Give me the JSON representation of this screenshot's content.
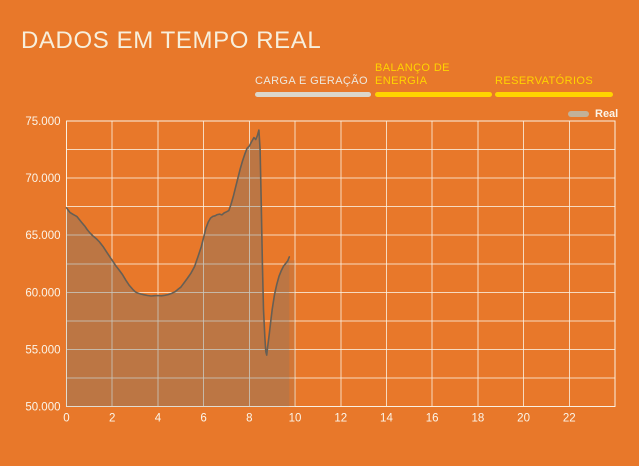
{
  "title": "DADOS EM TEMPO REAL",
  "tabs": [
    {
      "label": "CARGA E GERAÇÃO",
      "active": true
    },
    {
      "label": "BALANÇO DE ENERGIA",
      "active": false
    },
    {
      "label": "RESERVATÓRIOS",
      "active": false
    }
  ],
  "legend": {
    "label": "Real"
  },
  "colors": {
    "background": "#E8782A",
    "title_text": "#F7EFDC",
    "active_tab": "#DCD6CA",
    "accent_yellow": "#FFD400",
    "gridline": "rgba(250,242,228,0.8)",
    "frame": "rgba(250,242,228,0.9)",
    "axis_text": "#FBF5E9",
    "area_fill": "rgba(100,115,120,0.33)",
    "live_edge_fill": "rgba(100,115,120,0.16)",
    "line_stroke": "#675F54",
    "legend_swatch": "#C2B199"
  },
  "chart_data": {
    "type": "area",
    "title": "",
    "xlabel": "",
    "ylabel": "",
    "x_range": [
      0,
      24
    ],
    "y_range": [
      50000,
      75000
    ],
    "x_gridline_step_hours": 2,
    "y_gridline_step": 2500,
    "grid": true,
    "legend_position": "top-right",
    "x_tick_values": [
      0,
      2,
      4,
      6,
      8,
      10,
      12,
      14,
      16,
      18,
      20,
      22
    ],
    "x_tick_labels": [
      "0",
      "2",
      "4",
      "6",
      "8",
      "10",
      "12",
      "14",
      "16",
      "18",
      "20",
      "22"
    ],
    "y_tick_values": [
      50000,
      55000,
      60000,
      65000,
      70000,
      75000
    ],
    "y_tick_labels": [
      "50.000",
      "55.000",
      "60.000",
      "65.000",
      "70.000",
      "75.000"
    ],
    "series": [
      {
        "name": "Real",
        "points": [
          [
            0.0,
            67400
          ],
          [
            0.15,
            67000
          ],
          [
            0.3,
            66800
          ],
          [
            0.45,
            66650
          ],
          [
            0.55,
            66400
          ],
          [
            0.65,
            66150
          ],
          [
            0.8,
            65800
          ],
          [
            0.9,
            65500
          ],
          [
            1.0,
            65250
          ],
          [
            1.15,
            64950
          ],
          [
            1.3,
            64700
          ],
          [
            1.45,
            64400
          ],
          [
            1.6,
            64000
          ],
          [
            1.75,
            63550
          ],
          [
            1.9,
            63100
          ],
          [
            2.0,
            62800
          ],
          [
            2.15,
            62350
          ],
          [
            2.3,
            61950
          ],
          [
            2.45,
            61550
          ],
          [
            2.6,
            61050
          ],
          [
            2.75,
            60600
          ],
          [
            2.9,
            60250
          ],
          [
            3.0,
            60050
          ],
          [
            3.1,
            59950
          ],
          [
            3.25,
            59850
          ],
          [
            3.4,
            59780
          ],
          [
            3.55,
            59720
          ],
          [
            3.7,
            59680
          ],
          [
            3.85,
            59700
          ],
          [
            4.0,
            59720
          ],
          [
            4.15,
            59690
          ],
          [
            4.3,
            59740
          ],
          [
            4.45,
            59800
          ],
          [
            4.6,
            59900
          ],
          [
            4.75,
            60050
          ],
          [
            4.9,
            60300
          ],
          [
            5.0,
            60450
          ],
          [
            5.15,
            60850
          ],
          [
            5.3,
            61250
          ],
          [
            5.45,
            61700
          ],
          [
            5.6,
            62250
          ],
          [
            5.75,
            63100
          ],
          [
            5.9,
            64000
          ],
          [
            6.0,
            64800
          ],
          [
            6.1,
            65600
          ],
          [
            6.2,
            66150
          ],
          [
            6.3,
            66500
          ],
          [
            6.4,
            66650
          ],
          [
            6.5,
            66700
          ],
          [
            6.6,
            66800
          ],
          [
            6.7,
            66850
          ],
          [
            6.8,
            66780
          ],
          [
            6.9,
            66950
          ],
          [
            7.0,
            67050
          ],
          [
            7.1,
            67150
          ],
          [
            7.2,
            67700
          ],
          [
            7.3,
            68400
          ],
          [
            7.4,
            69200
          ],
          [
            7.5,
            70000
          ],
          [
            7.6,
            70800
          ],
          [
            7.7,
            71500
          ],
          [
            7.8,
            72100
          ],
          [
            7.9,
            72600
          ],
          [
            8.0,
            72800
          ],
          [
            8.1,
            73200
          ],
          [
            8.2,
            73550
          ],
          [
            8.28,
            73380
          ],
          [
            8.35,
            73700
          ],
          [
            8.42,
            74200
          ],
          [
            8.47,
            72500
          ],
          [
            8.52,
            68000
          ],
          [
            8.57,
            62500
          ],
          [
            8.62,
            58500
          ],
          [
            8.68,
            56000
          ],
          [
            8.72,
            54800
          ],
          [
            8.76,
            54500
          ],
          [
            8.8,
            55200
          ],
          [
            8.87,
            56300
          ],
          [
            8.94,
            57500
          ],
          [
            9.0,
            58500
          ],
          [
            9.1,
            59800
          ],
          [
            9.2,
            60700
          ],
          [
            9.3,
            61400
          ],
          [
            9.4,
            61900
          ],
          [
            9.5,
            62300
          ],
          [
            9.6,
            62550
          ],
          [
            9.68,
            62750
          ],
          [
            9.75,
            63100
          ]
        ]
      }
    ],
    "live_edge": {
      "from_hour": 9.75,
      "to_hour": 10.0,
      "top_value": 62800
    }
  }
}
